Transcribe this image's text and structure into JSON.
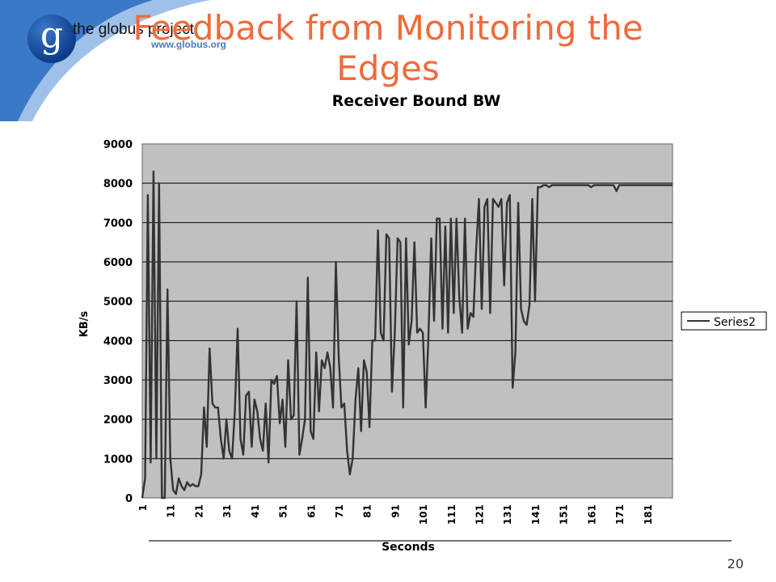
{
  "slide": {
    "title": "Feedback from Monitoring the Edges",
    "page_number": "20",
    "logo": {
      "mark": "g",
      "name": "the globus project",
      "url": "www.globus.org"
    },
    "colors": {
      "title": "#f06a3c",
      "swoosh": "#3a78c8",
      "plot_bg": "#c0c0c0",
      "series": "#333333"
    }
  },
  "chart_data": {
    "type": "line",
    "title": "Receiver Bound BW",
    "xlabel": "Seconds",
    "ylabel": "KB/s",
    "ylim": [
      0,
      9000
    ],
    "yticks": [
      0,
      1000,
      2000,
      3000,
      4000,
      5000,
      6000,
      7000,
      8000,
      9000
    ],
    "xlim": [
      1,
      190
    ],
    "xticks": [
      1,
      11,
      21,
      31,
      41,
      51,
      61,
      71,
      81,
      91,
      101,
      111,
      121,
      131,
      141,
      151,
      161,
      171,
      181
    ],
    "grid": true,
    "legend": "right",
    "series": [
      {
        "name": "Series2",
        "values": [
          0,
          500,
          7700,
          900,
          8300,
          1000,
          8000,
          0,
          0,
          5300,
          1000,
          200,
          100,
          500,
          300,
          200,
          400,
          300,
          350,
          300,
          300,
          600,
          2300,
          1300,
          3800,
          2400,
          2300,
          2300,
          1500,
          1000,
          2000,
          1200,
          1000,
          2200,
          4300,
          1500,
          1100,
          2600,
          2700,
          1300,
          2500,
          2200,
          1500,
          1200,
          2400,
          900,
          3000,
          2900,
          3100,
          1900,
          2500,
          1300,
          3500,
          2000,
          2100,
          5000,
          1100,
          1500,
          2000,
          5600,
          1700,
          1500,
          3700,
          2200,
          3500,
          3300,
          3700,
          3300,
          2300,
          6000,
          3600,
          2300,
          2400,
          1200,
          600,
          1000,
          2500,
          3300,
          1700,
          3500,
          3200,
          1800,
          4000,
          4000,
          6800,
          4200,
          4000,
          6700,
          6600,
          2700,
          4200,
          6600,
          6500,
          2300,
          6600,
          3900,
          4500,
          6500,
          4200,
          4300,
          4200,
          2300,
          4100,
          6600,
          4500,
          7100,
          7100,
          4300,
          6900,
          4200,
          7100,
          4700,
          7100,
          5100,
          4200,
          7100,
          4300,
          4700,
          4600,
          6300,
          7600,
          4800,
          7400,
          7600,
          4700,
          7600,
          7500,
          7400,
          7600,
          5400,
          7500,
          7700,
          2800,
          3700,
          7500,
          4800,
          4500,
          4400,
          4900,
          7600,
          5000,
          7900,
          7900,
          7950,
          7950,
          7900,
          7950,
          7950,
          7950,
          7950,
          7950,
          7950,
          7950,
          7950,
          7950,
          7950,
          7950,
          7950,
          7950,
          7950,
          7900,
          7950,
          7950,
          7950,
          7950,
          7950,
          7950,
          7950,
          7950,
          7800,
          7950,
          7950,
          7950,
          7950,
          7950,
          7950,
          7950,
          7950,
          7950,
          7950,
          7950,
          7950,
          7950,
          7950,
          7950,
          7950,
          7950,
          7950,
          7950,
          7950
        ]
      }
    ]
  }
}
